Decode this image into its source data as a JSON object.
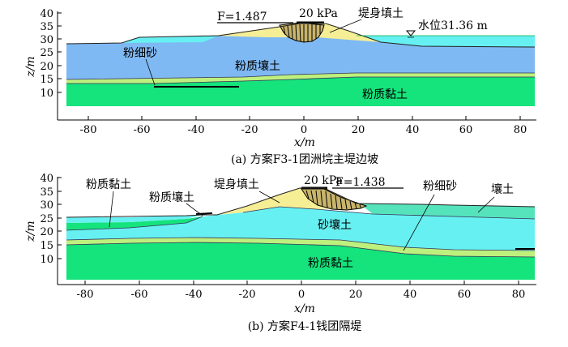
{
  "panel_a": {
    "y_label": "z/m",
    "x_label": "x/m",
    "y_ticks": [
      "40",
      "35",
      "30",
      "25",
      "20",
      "15",
      "10"
    ],
    "x_ticks": [
      "-80",
      "-60",
      "-40",
      "-20",
      "0",
      "20",
      "40",
      "60",
      "80"
    ],
    "factor_of_safety": "F=1.487",
    "surcharge": "20 kPa",
    "water_level": "水位31.36 m",
    "layer_labels": {
      "embankment_fill": "堤身填土",
      "fine_sand": "粉细砂",
      "silty_loam": "粉质壤土",
      "silty_clay": "粉质黏土"
    },
    "caption": "(a) 方案F3-1团洲垸主堤边坡"
  },
  "panel_b": {
    "y_label": "z/m",
    "x_label": "x/m",
    "y_ticks": [
      "40",
      "35",
      "30",
      "25",
      "20",
      "15",
      "10"
    ],
    "x_ticks": [
      "-80",
      "-60",
      "-40",
      "-20",
      "0",
      "20",
      "40",
      "60",
      "80"
    ],
    "factor_of_safety": "F=1.438",
    "surcharge": "20 kPa",
    "layer_labels": {
      "silty_clay_top": "粉质黏土",
      "silty_loam": "粉质壤土",
      "embankment_fill": "堤身填土",
      "fine_sand": "粉细砂",
      "loam": "壤土",
      "sandy_loam": "砂壤土",
      "silty_clay_bottom": "粉质黏土"
    },
    "caption": "(b) 方案F4-1钱团隔堤"
  },
  "colors": {
    "fill_yellow": "#F6EE95",
    "loam_blue": "#7FB9F3",
    "cyan": "#67F0F2",
    "green": "#15E37C",
    "light_green": "#BEF07E",
    "teal": "#55E3BC"
  }
}
